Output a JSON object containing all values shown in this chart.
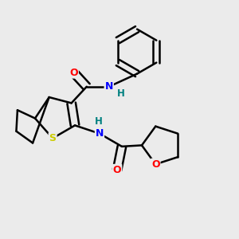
{
  "background_color": "#ebebeb",
  "bond_color": "#000000",
  "atom_colors": {
    "N": "#0000ff",
    "O": "#ff0000",
    "S": "#cccc00",
    "H": "#008080",
    "C": "#000000"
  },
  "figsize": [
    3.0,
    3.0
  ],
  "dpi": 100
}
